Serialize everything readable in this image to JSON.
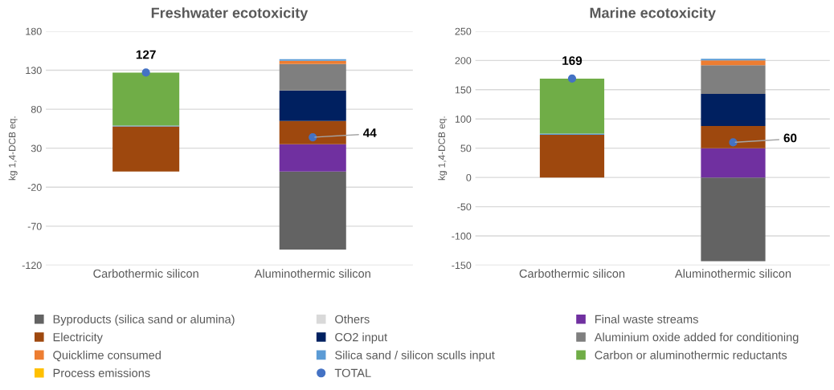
{
  "chart_data": [
    {
      "type": "bar",
      "stacked": true,
      "title": "Freshwater ecotoxicity",
      "ylabel": "kg 1,4-DCB eq.",
      "categories": [
        "Carbothermic silicon",
        "Aluminothermic silicon"
      ],
      "ylim": [
        -120,
        180
      ],
      "yticks": [
        -120,
        -70,
        -20,
        30,
        80,
        130,
        180
      ],
      "grid": "y",
      "legend": "bottom",
      "series": [
        {
          "name": "Byproducts (silica sand or alumina)",
          "color": "#636363",
          "values": [
            0,
            -100
          ]
        },
        {
          "name": "Others",
          "color": "#d9d9d9",
          "values": [
            0,
            0
          ]
        },
        {
          "name": "Final waste streams",
          "color": "#7030a0",
          "values": [
            0,
            35
          ]
        },
        {
          "name": "Electricity",
          "color": "#9e480e",
          "values": [
            58,
            30
          ]
        },
        {
          "name": "CO2 input",
          "color": "#002060",
          "values": [
            0,
            39
          ]
        },
        {
          "name": "Aluminium oxide added for conditioning",
          "color": "#7f7f7f",
          "values": [
            0,
            34
          ]
        },
        {
          "name": "Quicklime consumed",
          "color": "#ed7d31",
          "values": [
            0,
            4
          ]
        },
        {
          "name": "Silica sand / silicon sculls input",
          "color": "#5b9bd5",
          "values": [
            1,
            2
          ]
        },
        {
          "name": "Carbon or aluminothermic reductants",
          "color": "#70ad47",
          "values": [
            68,
            0
          ]
        },
        {
          "name": "Process emissions",
          "color": "#ffc000",
          "values": [
            0,
            0
          ]
        },
        {
          "name": "TOTAL",
          "type": "scatter",
          "marker": "circle",
          "color": "#4472c4",
          "values": [
            127,
            44
          ],
          "value_labels": [
            "127",
            "44"
          ]
        }
      ]
    },
    {
      "type": "bar",
      "stacked": true,
      "title": "Marine ecotoxicity",
      "ylabel": "kg 1,4-DCB eq.",
      "categories": [
        "Carbothermic silicon",
        "Aluminothermic silicon"
      ],
      "ylim": [
        -150,
        250
      ],
      "yticks": [
        -150,
        -100,
        -50,
        0,
        50,
        100,
        150,
        200,
        250
      ],
      "grid": "y",
      "series": [
        {
          "color": "#636363",
          "values": [
            0,
            -143
          ]
        },
        {
          "color": "#d9d9d9",
          "values": [
            0,
            0
          ]
        },
        {
          "color": "#7030a0",
          "values": [
            0,
            50
          ]
        },
        {
          "color": "#9e480e",
          "values": [
            73,
            38
          ]
        },
        {
          "color": "#002060",
          "values": [
            0,
            55
          ]
        },
        {
          "color": "#7f7f7f",
          "values": [
            0,
            49
          ]
        },
        {
          "color": "#ed7d31",
          "values": [
            0,
            8
          ]
        },
        {
          "color": "#5b9bd5",
          "values": [
            2,
            3
          ]
        },
        {
          "color": "#70ad47",
          "values": [
            94,
            0
          ]
        },
        {
          "color": "#ffc000",
          "values": [
            0,
            0
          ]
        },
        {
          "type": "scatter",
          "marker": "circle",
          "color": "#4472c4",
          "values": [
            169,
            60
          ],
          "value_labels": [
            "169",
            "60"
          ]
        }
      ]
    }
  ]
}
